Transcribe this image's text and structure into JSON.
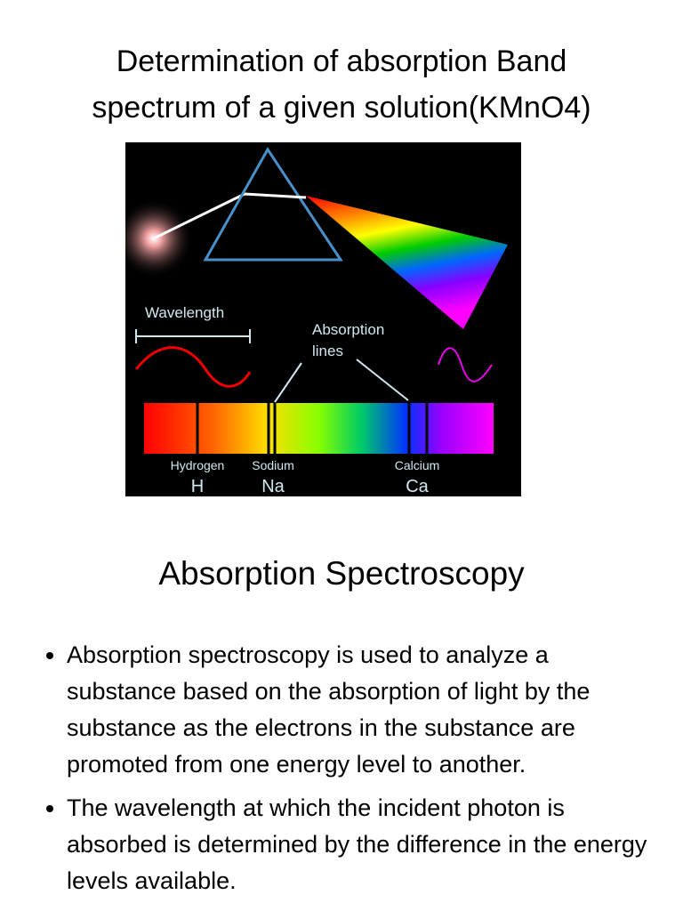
{
  "slide1": {
    "title_lines": [
      "Determination of absorption Band",
      "spectrum of a given solution(KMnO4)"
    ],
    "figure": {
      "wavelength_label": "Wavelength",
      "absorption_label_lines": [
        "Absorption",
        "lines"
      ],
      "elements": [
        {
          "name": "Hydrogen",
          "symbol": "H"
        },
        {
          "name": "Sodium",
          "symbol": "Na"
        },
        {
          "name": "Calcium",
          "symbol": "Ca"
        }
      ]
    }
  },
  "slide2": {
    "title": "Absorption Spectroscopy",
    "bullets": [
      "Absorption spectroscopy is used to analyze a substance based on the absorption of light by the substance as the electrons in the substance are promoted from one energy level to another.",
      "The wavelength at which the incident photon is absorbed is determined by the difference in the energy levels available."
    ]
  }
}
